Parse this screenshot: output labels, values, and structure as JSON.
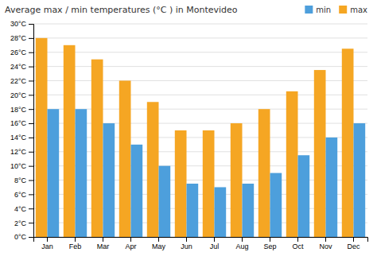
{
  "chart_data": {
    "type": "bar",
    "title": "Average max / min temperatures (°C ) in Montevideo",
    "categories": [
      "Jan",
      "Feb",
      "Mar",
      "Apr",
      "May",
      "Jun",
      "Jul",
      "Aug",
      "Sep",
      "Oct",
      "Nov",
      "Dec"
    ],
    "series": [
      {
        "name": "max",
        "color": "#f5a623",
        "values": [
          28,
          27,
          25,
          22,
          19,
          15,
          15,
          16,
          18,
          20.5,
          23.5,
          26.5
        ]
      },
      {
        "name": "min",
        "color": "#4d9fdc",
        "values": [
          18,
          18,
          16,
          13,
          10,
          7.5,
          7,
          7.5,
          9,
          11.5,
          14,
          16
        ]
      }
    ],
    "ylim": [
      0,
      30
    ],
    "yticks": [
      {
        "value": 0,
        "label": "0°C"
      },
      {
        "value": 2,
        "label": "2°C"
      },
      {
        "value": 4,
        "label": "4°C"
      },
      {
        "value": 6,
        "label": "6°C"
      },
      {
        "value": 8,
        "label": "8°C"
      },
      {
        "value": 10,
        "label": "10°C"
      },
      {
        "value": 12,
        "label": "12°C"
      },
      {
        "value": 14,
        "label": "14°C"
      },
      {
        "value": 16,
        "label": "16°C"
      },
      {
        "value": 18,
        "label": "18°C"
      },
      {
        "value": 20,
        "label": "20°C"
      },
      {
        "value": 22,
        "label": "22°C"
      },
      {
        "value": 24,
        "label": "24°C"
      },
      {
        "value": 26,
        "label": "26°C"
      },
      {
        "value": 28,
        "label": "28°C"
      },
      {
        "value": 30,
        "label": "30°C"
      }
    ],
    "grid": true,
    "legend": "top-right"
  }
}
